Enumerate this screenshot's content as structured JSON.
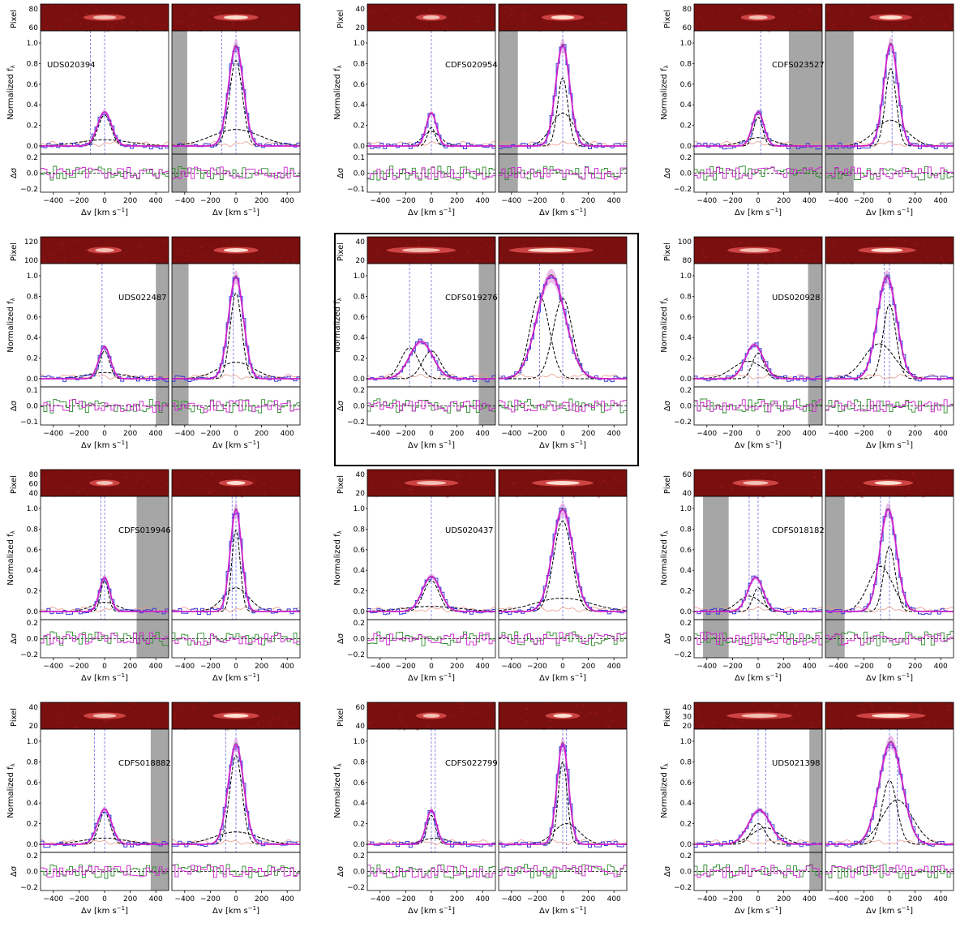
{
  "figure": {
    "labels": {
      "pixel": "Pixel",
      "flux": "Normalized f",
      "flux_sub": "λ",
      "resid": "Δσ",
      "vel": "Δv [km s",
      "vel_exp": "−1",
      "vel_close": "]"
    },
    "colors": {
      "data_step": "#3a3ad6",
      "fit_total": "#cc22cc",
      "fit_band": "#dd88dd",
      "fit_alt": "#2e8b2e",
      "components": "#000000",
      "noise": "#e89a8a",
      "mask": "#a6a6a6",
      "marker_line": "#6b6bdd"
    }
  },
  "chart_data": [
    {
      "type": "line",
      "name": "UDS020394",
      "highlight": false,
      "pixel_ticks": [
        "60",
        "80"
      ],
      "left": {
        "amp": 0.33,
        "sigma": 55,
        "center": 0,
        "comps": [
          {
            "a": 0.3,
            "c": 0,
            "s": 50
          },
          {
            "a": 0.06,
            "c": 0,
            "s": 200
          }
        ],
        "markers": [
          -110,
          0
        ],
        "mask": null,
        "xticks": [
          "−400",
          "−200",
          "0",
          "200",
          "400"
        ]
      },
      "right": {
        "amp": 0.97,
        "sigma": 58,
        "center": 0,
        "comps": [
          {
            "a": 0.83,
            "c": 0,
            "s": 50
          },
          {
            "a": 0.16,
            "c": 0,
            "s": 190
          }
        ],
        "markers": [
          -110,
          0
        ],
        "mask": [
          -500,
          -380
        ],
        "xticks": [
          "−400",
          "−200",
          "0",
          "200",
          "400"
        ]
      },
      "yticks": [
        "0.0",
        "0.2",
        "0.4",
        "0.6",
        "0.8",
        "1.0"
      ],
      "resid_ticks": [
        "0.2",
        "0.0",
        "−0.2"
      ],
      "resid_lim": 0.2
    },
    {
      "type": "line",
      "name": "CDFS020954",
      "highlight": false,
      "pixel_ticks": [
        "20",
        "40"
      ],
      "left": {
        "amp": 0.32,
        "sigma": 40,
        "center": 0,
        "comps": [
          {
            "a": 0.18,
            "c": 0,
            "s": 30
          },
          {
            "a": 0.14,
            "c": 0,
            "s": 70
          }
        ],
        "markers": [
          0
        ],
        "mask": null,
        "xticks": [
          "−400",
          "−200",
          "0",
          "200",
          "400"
        ]
      },
      "right": {
        "amp": 0.98,
        "sigma": 55,
        "center": 0,
        "comps": [
          {
            "a": 0.66,
            "c": 0,
            "s": 40
          },
          {
            "a": 0.32,
            "c": 0,
            "s": 90
          }
        ],
        "markers": [
          0
        ],
        "mask": [
          -500,
          -350
        ],
        "xticks": [
          "−400",
          "−200",
          "0",
          "200",
          "400"
        ]
      },
      "yticks": [
        "0.0",
        "0.2",
        "0.4",
        "0.6",
        "0.8",
        "1.0"
      ],
      "resid_ticks": [
        "0.1",
        "0.0",
        "−0.1"
      ],
      "resid_lim": 0.1
    },
    {
      "type": "line",
      "name": "CDFS023527",
      "highlight": false,
      "pixel_ticks": [
        "60",
        "80"
      ],
      "left": {
        "amp": 0.33,
        "sigma": 45,
        "center": 0,
        "comps": [
          {
            "a": 0.28,
            "c": 0,
            "s": 35
          },
          {
            "a": 0.08,
            "c": 0,
            "s": 120
          }
        ],
        "markers": [
          20
        ],
        "mask": [
          240,
          500
        ],
        "xticks": [
          "−400",
          "−200",
          "0",
          "200",
          "400"
        ]
      },
      "right": {
        "amp": 0.99,
        "sigma": 55,
        "center": 10,
        "comps": [
          {
            "a": 0.75,
            "c": 10,
            "s": 42
          },
          {
            "a": 0.25,
            "c": 10,
            "s": 120
          }
        ],
        "markers": [
          20
        ],
        "mask": [
          -500,
          -280
        ],
        "xticks": [
          "−400",
          "−200",
          "0",
          "200",
          "400"
        ]
      },
      "yticks": [
        "0.0",
        "0.2",
        "0.4",
        "0.6",
        "0.8",
        "1.0"
      ],
      "resid_ticks": [
        "0.2",
        "0.0",
        "−0.2"
      ],
      "resid_lim": 0.2
    },
    {
      "type": "line",
      "name": "UDS022487",
      "highlight": false,
      "pixel_ticks": [
        "100",
        "120"
      ],
      "left": {
        "amp": 0.31,
        "sigma": 45,
        "center": 0,
        "comps": [
          {
            "a": 0.27,
            "c": 0,
            "s": 38
          },
          {
            "a": 0.06,
            "c": 0,
            "s": 150
          }
        ],
        "markers": [
          -20
        ],
        "mask": [
          400,
          500
        ],
        "xticks": [
          "−400",
          "−200",
          "0",
          "200",
          "400"
        ]
      },
      "right": {
        "amp": 0.99,
        "sigma": 58,
        "center": 0,
        "comps": [
          {
            "a": 0.83,
            "c": 0,
            "s": 45
          },
          {
            "a": 0.16,
            "c": 0,
            "s": 140
          }
        ],
        "markers": [
          -20
        ],
        "mask": [
          -500,
          -370
        ],
        "xticks": [
          "−400",
          "−200",
          "0",
          "200",
          "400"
        ]
      },
      "yticks": [
        "0.0",
        "0.2",
        "0.4",
        "0.6",
        "0.8",
        "1.0"
      ],
      "resid_ticks": [
        "0.1",
        "0.0",
        "−0.1"
      ],
      "resid_lim": 0.1
    },
    {
      "type": "line",
      "name": "CDFS019276",
      "highlight": true,
      "pixel_ticks": [
        "20",
        "40"
      ],
      "left": {
        "amp": 0.36,
        "sigma": 90,
        "center": -80,
        "comps": [
          {
            "a": 0.3,
            "c": -170,
            "s": 70
          },
          {
            "a": 0.27,
            "c": 0,
            "s": 70
          }
        ],
        "markers": [
          -170,
          0
        ],
        "mask": [
          370,
          500
        ],
        "xticks": [
          "−400",
          "−200",
          "0",
          "200",
          "400"
        ]
      },
      "right": {
        "amp": 1.0,
        "sigma": 110,
        "center": -90,
        "comps": [
          {
            "a": 0.81,
            "c": -180,
            "s": 75
          },
          {
            "a": 0.78,
            "c": 0,
            "s": 75
          }
        ],
        "markers": [
          -180,
          0
        ],
        "mask": null,
        "xticks": [
          "−400",
          "−200",
          "0",
          "200",
          "400"
        ]
      },
      "yticks": [
        "0.0",
        "0.2",
        "0.4",
        "0.6",
        "0.8",
        "1.0"
      ],
      "resid_ticks": [
        "0.2",
        "0.0",
        "−0.2"
      ],
      "resid_lim": 0.2
    },
    {
      "type": "line",
      "name": "UDS020928",
      "highlight": false,
      "pixel_ticks": [
        "80",
        "100"
      ],
      "left": {
        "amp": 0.33,
        "sigma": 70,
        "center": -30,
        "comps": [
          {
            "a": 0.25,
            "c": 0,
            "s": 45
          },
          {
            "a": 0.17,
            "c": -80,
            "s": 120
          }
        ],
        "markers": [
          -80,
          0
        ],
        "mask": [
          390,
          500
        ],
        "xticks": [
          "−400",
          "−200",
          "0",
          "200",
          "400"
        ]
      },
      "right": {
        "amp": 0.99,
        "sigma": 75,
        "center": -20,
        "comps": [
          {
            "a": 0.72,
            "c": 0,
            "s": 50
          },
          {
            "a": 0.34,
            "c": -80,
            "s": 120
          }
        ],
        "markers": [
          -40,
          0
        ],
        "mask": null,
        "xticks": [
          "−400",
          "−200",
          "0",
          "200",
          "400"
        ]
      },
      "yticks": [
        "0.0",
        "0.2",
        "0.4",
        "0.6",
        "0.8",
        "1.0"
      ],
      "resid_ticks": [
        "0.2",
        "0.0",
        "−0.2"
      ],
      "resid_lim": 0.2
    },
    {
      "type": "line",
      "name": "CDFS019946",
      "highlight": false,
      "pixel_ticks": [
        "40",
        "60",
        "80"
      ],
      "left": {
        "amp": 0.33,
        "sigma": 40,
        "center": 0,
        "comps": [
          {
            "a": 0.3,
            "c": 0,
            "s": 30
          },
          {
            "a": 0.09,
            "c": 0,
            "s": 100
          }
        ],
        "markers": [
          -30,
          0
        ],
        "mask": [
          250,
          500
        ],
        "xticks": [
          "−400",
          "−200",
          "0",
          "200",
          "400"
        ]
      },
      "right": {
        "amp": 0.99,
        "sigma": 45,
        "center": 0,
        "comps": [
          {
            "a": 0.79,
            "c": 0,
            "s": 33
          },
          {
            "a": 0.23,
            "c": 0,
            "s": 100
          }
        ],
        "markers": [
          -30,
          0
        ],
        "mask": null,
        "xticks": [
          "−400",
          "−200",
          "0",
          "200",
          "400"
        ]
      },
      "yticks": [
        "0.0",
        "0.2",
        "0.4",
        "0.6",
        "0.8",
        "1.0"
      ],
      "resid_ticks": [
        "0.2",
        "0.0",
        "−0.2"
      ],
      "resid_lim": 0.2
    },
    {
      "type": "line",
      "name": "UDS020437",
      "highlight": false,
      "pixel_ticks": [
        "20",
        "40"
      ],
      "left": {
        "amp": 0.34,
        "sigma": 70,
        "center": 0,
        "comps": [
          {
            "a": 0.3,
            "c": 0,
            "s": 60
          },
          {
            "a": 0.05,
            "c": 0,
            "s": 220
          }
        ],
        "markers": [
          0
        ],
        "mask": null,
        "xticks": [
          "−400",
          "−200",
          "0",
          "200",
          "400"
        ]
      },
      "right": {
        "amp": 0.99,
        "sigma": 80,
        "center": 0,
        "comps": [
          {
            "a": 0.88,
            "c": 0,
            "s": 70
          },
          {
            "a": 0.13,
            "c": 0,
            "s": 220
          }
        ],
        "markers": [
          0
        ],
        "mask": null,
        "xticks": [
          "−400",
          "−200",
          "0",
          "200",
          "400"
        ]
      },
      "yticks": [
        "0.0",
        "0.2",
        "0.4",
        "0.6",
        "0.8",
        "1.0"
      ],
      "resid_ticks": [
        "0.2",
        "0.0",
        "−0.2"
      ],
      "resid_lim": 0.2
    },
    {
      "type": "line",
      "name": "CDFS018182",
      "highlight": false,
      "pixel_ticks": [
        "40",
        "60"
      ],
      "left": {
        "amp": 0.33,
        "sigma": 60,
        "center": -20,
        "comps": [
          {
            "a": 0.23,
            "c": 0,
            "s": 40
          },
          {
            "a": 0.15,
            "c": -70,
            "s": 90
          }
        ],
        "markers": [
          -70,
          0
        ],
        "mask": [
          -430,
          -230
        ],
        "xticks": [
          "−400",
          "−200",
          "0",
          "200",
          "400"
        ]
      },
      "right": {
        "amp": 0.99,
        "sigma": 65,
        "center": -10,
        "comps": [
          {
            "a": 0.63,
            "c": 0,
            "s": 45
          },
          {
            "a": 0.44,
            "c": -70,
            "s": 95
          }
        ],
        "markers": [
          -70,
          0
        ],
        "mask": [
          -500,
          -350
        ],
        "xticks": [
          "−400",
          "−200",
          "0",
          "200",
          "400"
        ]
      },
      "yticks": [
        "0.0",
        "0.2",
        "0.4",
        "0.6",
        "0.8",
        "1.0"
      ],
      "resid_ticks": [
        "0.2",
        "0.0",
        "−0.2"
      ],
      "resid_lim": 0.2
    },
    {
      "type": "line",
      "name": "CDFS018882",
      "highlight": false,
      "pixel_ticks": [
        "20",
        "40"
      ],
      "left": {
        "amp": 0.34,
        "sigma": 55,
        "center": 0,
        "comps": [
          {
            "a": 0.31,
            "c": 0,
            "s": 45
          },
          {
            "a": 0.06,
            "c": 0,
            "s": 170
          }
        ],
        "markers": [
          -80,
          0
        ],
        "mask": [
          360,
          500
        ],
        "xticks": [
          "−400",
          "−200",
          "0",
          "200",
          "400"
        ]
      },
      "right": {
        "amp": 0.97,
        "sigma": 60,
        "center": 0,
        "comps": [
          {
            "a": 0.86,
            "c": 0,
            "s": 48
          },
          {
            "a": 0.12,
            "c": 0,
            "s": 170
          }
        ],
        "markers": [
          -80,
          0
        ],
        "mask": null,
        "xticks": [
          "−400",
          "−200",
          "0",
          "200",
          "400"
        ]
      },
      "yticks": [
        "0.0",
        "0.2",
        "0.4",
        "0.6",
        "0.8",
        "1.0"
      ],
      "resid_ticks": [
        "0.2",
        "0.0",
        "−0.2"
      ],
      "resid_lim": 0.2
    },
    {
      "type": "line",
      "name": "CDFS022799",
      "highlight": false,
      "pixel_ticks": [
        "40",
        "60"
      ],
      "left": {
        "amp": 0.33,
        "sigma": 40,
        "center": 0,
        "comps": [
          {
            "a": 0.28,
            "c": 0,
            "s": 33
          },
          {
            "a": 0.06,
            "c": 30,
            "s": 100
          }
        ],
        "markers": [
          0,
          30
        ],
        "mask": null,
        "xticks": [
          "−400",
          "−200",
          "0",
          "200",
          "400"
        ]
      },
      "right": {
        "amp": 0.98,
        "sigma": 45,
        "center": 0,
        "comps": [
          {
            "a": 0.8,
            "c": 0,
            "s": 35
          },
          {
            "a": 0.2,
            "c": 30,
            "s": 100
          }
        ],
        "markers": [
          0,
          30
        ],
        "mask": null,
        "xticks": [
          "−400",
          "−200",
          "0",
          "200",
          "400"
        ]
      },
      "yticks": [
        "0.0",
        "0.2",
        "0.4",
        "0.6",
        "0.8",
        "1.0"
      ],
      "resid_ticks": [
        "0.2",
        "0.0",
        "−0.2"
      ],
      "resid_lim": 0.2
    },
    {
      "type": "line",
      "name": "UDS021398",
      "highlight": false,
      "pixel_ticks": [
        "20",
        "30",
        "40"
      ],
      "left": {
        "amp": 0.33,
        "sigma": 85,
        "center": 10,
        "comps": [
          {
            "a": 0.2,
            "c": 0,
            "s": 55
          },
          {
            "a": 0.16,
            "c": 60,
            "s": 110
          }
        ],
        "markers": [
          0,
          60
        ],
        "mask": [
          400,
          500
        ],
        "xticks": [
          "−400",
          "−200",
          "0",
          "200",
          "400"
        ]
      },
      "right": {
        "amp": 0.99,
        "sigma": 90,
        "center": 10,
        "comps": [
          {
            "a": 0.62,
            "c": 0,
            "s": 58
          },
          {
            "a": 0.43,
            "c": 60,
            "s": 120
          }
        ],
        "markers": [
          0,
          60
        ],
        "mask": null,
        "xticks": [
          "−400",
          "−200",
          "0",
          "200",
          "400"
        ]
      },
      "yticks": [
        "0.0",
        "0.2",
        "0.4",
        "0.6",
        "0.8",
        "1.0"
      ],
      "resid_ticks": [
        "0.2",
        "0.0",
        "−0.2"
      ],
      "resid_lim": 0.2
    }
  ]
}
